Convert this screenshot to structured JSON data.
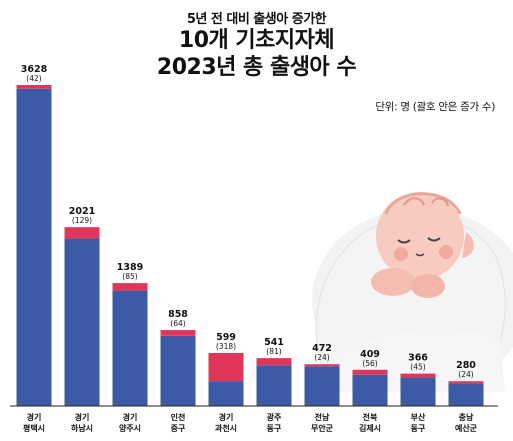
{
  "chart_data": {
    "type": "bar",
    "stacked": true,
    "subtitle": "5년 전 대비 출생아 증가한",
    "title_lines": [
      "10개 기초지자체",
      "2023년 총 출생아 수"
    ],
    "unit_note": "단위: 명 (괄호 안은 증가 수)",
    "categories": [
      [
        "경기",
        "평택시"
      ],
      [
        "경기",
        "하남시"
      ],
      [
        "경기",
        "양주시"
      ],
      [
        "인천",
        "중구"
      ],
      [
        "경기",
        "과천시"
      ],
      [
        "광주",
        "동구"
      ],
      [
        "전남",
        "무안군"
      ],
      [
        "전북",
        "김제시"
      ],
      [
        "부산",
        "동구"
      ],
      [
        "충남",
        "예산군"
      ]
    ],
    "totals": [
      3628,
      2021,
      1389,
      858,
      599,
      541,
      472,
      409,
      366,
      280
    ],
    "increases": [
      42,
      129,
      85,
      64,
      318,
      81,
      24,
      56,
      45,
      24
    ],
    "colors": {
      "base": "#3c5aa6",
      "increase": "#e0365a",
      "axis": "#222222"
    },
    "legend": "none",
    "grid": false
  }
}
